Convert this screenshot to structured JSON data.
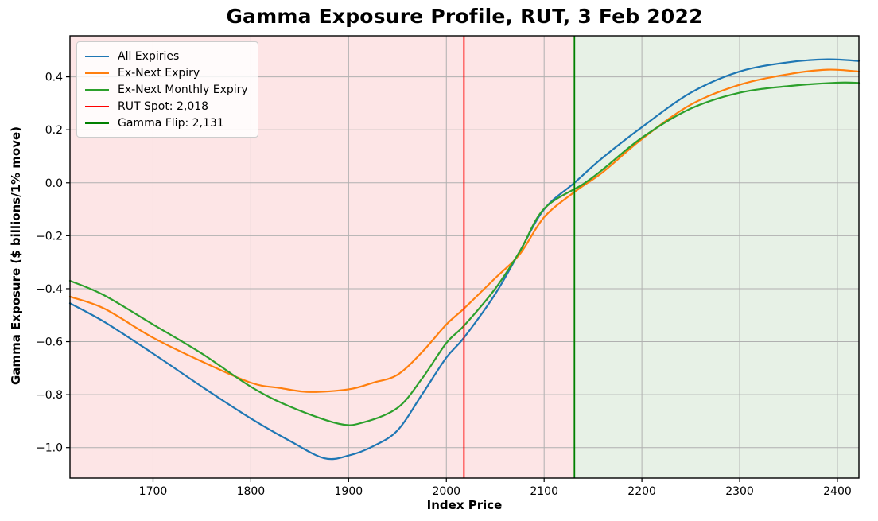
{
  "title": "Gamma Exposure Profile, RUT, 3 Feb 2022",
  "axes": {
    "xlabel": "Index Price",
    "ylabel": "Gamma Exposure ($ billions/1% move)"
  },
  "legend": {
    "position": "upper left",
    "items": [
      {
        "label": "All Expiries",
        "color": "#1f77b4"
      },
      {
        "label": "Ex-Next Expiry",
        "color": "#ff7f0e"
      },
      {
        "label": "Ex-Next Monthly Expiry",
        "color": "#2ca02c"
      },
      {
        "label": "RUT Spot: 2,018",
        "color": "#ff0000"
      },
      {
        "label": "Gamma Flip: 2,131",
        "color": "#008000"
      }
    ]
  },
  "chart_data": {
    "type": "line",
    "title": "Gamma Exposure Profile, RUT, 3 Feb 2022",
    "xlabel": "Index Price",
    "ylabel": "Gamma Exposure ($ billions/1% move)",
    "xlim": [
      1615,
      2422
    ],
    "ylim": [
      -1.115,
      0.555
    ],
    "grid": true,
    "grid_color": "#b0b0b0",
    "spine_color": "#000000",
    "x_ticks": [
      1700,
      1800,
      1900,
      2000,
      2100,
      2200,
      2300,
      2400
    ],
    "x_tick_labels": [
      "1700",
      "1800",
      "1900",
      "2000",
      "2100",
      "2200",
      "2300",
      "2400"
    ],
    "y_ticks": [
      0.4,
      0.2,
      0.0,
      -0.2,
      -0.4,
      -0.6,
      -0.8,
      -1.0
    ],
    "y_tick_labels": [
      "0.4",
      "0.2",
      "0.0",
      "−0.2",
      "−0.4",
      "−0.6",
      "−0.8",
      "−1.0"
    ],
    "regions": [
      {
        "name": "negative-gamma-zone",
        "from": 1615,
        "to": 2131,
        "color": "#fde5e6"
      },
      {
        "name": "positive-gamma-zone",
        "from": 2131,
        "to": 2422,
        "color": "#e7f1e6"
      }
    ],
    "vlines": [
      {
        "name": "rut-spot",
        "label": "RUT Spot",
        "value": 2018,
        "color": "#ff0000"
      },
      {
        "name": "gamma-flip",
        "label": "Gamma Flip",
        "value": 2131,
        "color": "#008000"
      }
    ],
    "series": [
      {
        "name": "All Expiries",
        "color": "#1f77b4",
        "x": [
          1615,
          1650,
          1700,
          1750,
          1800,
          1840,
          1875,
          1900,
          1925,
          1950,
          1975,
          2000,
          2018,
          2050,
          2075,
          2100,
          2131,
          2160,
          2200,
          2250,
          2300,
          2350,
          2390,
          2422
        ],
        "y": [
          -0.455,
          -0.525,
          -0.645,
          -0.77,
          -0.89,
          -0.975,
          -1.04,
          -1.03,
          -0.995,
          -0.935,
          -0.8,
          -0.66,
          -0.585,
          -0.42,
          -0.26,
          -0.1,
          0.0,
          0.095,
          0.21,
          0.34,
          0.42,
          0.455,
          0.466,
          0.46
        ]
      },
      {
        "name": "Ex-Next Expiry",
        "color": "#ff7f0e",
        "x": [
          1615,
          1650,
          1700,
          1750,
          1800,
          1830,
          1860,
          1900,
          1925,
          1950,
          1975,
          2000,
          2018,
          2050,
          2075,
          2100,
          2131,
          2160,
          2200,
          2250,
          2300,
          2350,
          2390,
          2422
        ],
        "y": [
          -0.43,
          -0.475,
          -0.585,
          -0.675,
          -0.755,
          -0.775,
          -0.79,
          -0.78,
          -0.755,
          -0.725,
          -0.64,
          -0.535,
          -0.475,
          -0.36,
          -0.27,
          -0.13,
          -0.035,
          0.04,
          0.165,
          0.295,
          0.37,
          0.41,
          0.427,
          0.42
        ]
      },
      {
        "name": "Ex-Next Monthly Expiry",
        "color": "#2ca02c",
        "x": [
          1615,
          1650,
          1700,
          1750,
          1800,
          1840,
          1890,
          1915,
          1950,
          1975,
          2000,
          2018,
          2050,
          2075,
          2100,
          2140,
          2160,
          2200,
          2250,
          2300,
          2350,
          2400,
          2422
        ],
        "y": [
          -0.37,
          -0.425,
          -0.535,
          -0.645,
          -0.77,
          -0.845,
          -0.91,
          -0.905,
          -0.85,
          -0.74,
          -0.605,
          -0.54,
          -0.4,
          -0.26,
          -0.098,
          -0.005,
          0.05,
          0.17,
          0.28,
          0.34,
          0.365,
          0.378,
          0.377
        ]
      }
    ]
  }
}
